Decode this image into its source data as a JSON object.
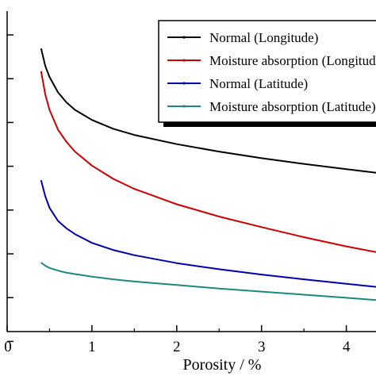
{
  "chart_data": {
    "type": "line",
    "title": "",
    "xlabel": "Porosity / %",
    "ylabel": "",
    "xlim": [
      0,
      4.35
    ],
    "ylim": [
      0,
      7.3
    ],
    "x_ticks": [
      0,
      1,
      2,
      3,
      4
    ],
    "y_tick_count": 8,
    "grid": false,
    "legend_position": "top-right",
    "series": [
      {
        "name": "Normal (Longitude)",
        "color": "#000000",
        "x": [
          0.4,
          0.45,
          0.5,
          0.6,
          0.7,
          0.8,
          1.0,
          1.25,
          1.5,
          2.0,
          2.5,
          3.0,
          3.5,
          4.0,
          4.35
        ],
        "y": [
          6.45,
          6.05,
          5.8,
          5.45,
          5.22,
          5.05,
          4.82,
          4.62,
          4.48,
          4.27,
          4.1,
          3.95,
          3.82,
          3.7,
          3.62
        ]
      },
      {
        "name": "Moisture absorption (Longitude)",
        "color": "#cc0000",
        "x": [
          0.4,
          0.45,
          0.5,
          0.6,
          0.7,
          0.8,
          1.0,
          1.25,
          1.5,
          2.0,
          2.5,
          3.0,
          3.5,
          4.0,
          4.35
        ],
        "y": [
          5.93,
          5.4,
          5.05,
          4.6,
          4.32,
          4.1,
          3.78,
          3.48,
          3.25,
          2.9,
          2.62,
          2.38,
          2.15,
          1.94,
          1.81
        ]
      },
      {
        "name": "Normal (Latitude)",
        "color": "#0000aa",
        "x": [
          0.4,
          0.45,
          0.5,
          0.6,
          0.7,
          0.8,
          1.0,
          1.25,
          1.5,
          2.0,
          2.5,
          3.0,
          3.5,
          4.0,
          4.35
        ],
        "y": [
          3.45,
          3.08,
          2.82,
          2.52,
          2.35,
          2.22,
          2.02,
          1.86,
          1.74,
          1.56,
          1.42,
          1.3,
          1.19,
          1.09,
          1.02
        ]
      },
      {
        "name": "Moisture absorption (Latitude)",
        "color": "#1a8a7a",
        "x": [
          0.4,
          0.45,
          0.5,
          0.6,
          0.7,
          0.8,
          1.0,
          1.25,
          1.5,
          2.0,
          2.5,
          3.0,
          3.5,
          4.0,
          4.35
        ],
        "y": [
          1.57,
          1.5,
          1.45,
          1.39,
          1.34,
          1.31,
          1.25,
          1.19,
          1.14,
          1.06,
          0.98,
          0.91,
          0.84,
          0.77,
          0.72
        ]
      }
    ],
    "legend": {
      "entries": [
        "Normal (Longitude)",
        "Moisture absorption (Longitude)",
        "Normal (Latitude)",
        "Moisture absorption (Latitude)"
      ]
    }
  }
}
